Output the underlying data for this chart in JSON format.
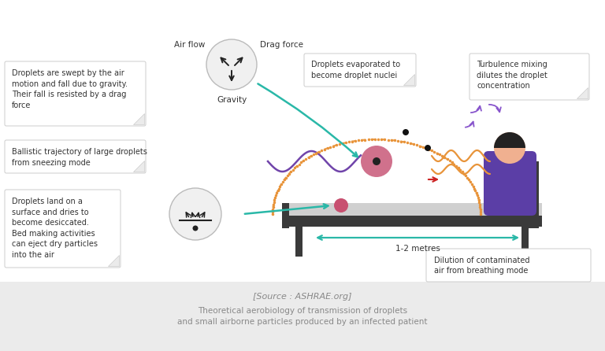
{
  "bg_color": "#ebebeb",
  "box_bg": "#ffffff",
  "box_border": "#cccccc",
  "title_source": "[Source : ASHRAE.org]",
  "title_main": "Theoretical aerobiology of transmission of droplets\nand small airborne particles produced by an infected patient",
  "label_airflow": "Air flow",
  "label_drag": "Drag force",
  "label_gravity": "Gravity",
  "label_box1": "Droplets are swept by the air\nmotion and fall due to gravity.\nTheir fall is resisted by a drag\nforce",
  "label_box2": "Ballistic trajectory of large droplets\nfrom sneezing mode",
  "label_box3": "Droplets land on a\nsurface and dries to\nbecome desiccated.\nBed making activities\ncan eject dry particles\ninto the air",
  "label_box4": "Droplets evaporated to\nbecome droplet nuclei",
  "label_box5": "Turbulence mixing\ndilutes the droplet\nconcentration",
  "label_distance": "1-2 metres",
  "label_dilution": "Dilution of contaminated\nair from breathing mode",
  "person_color": "#5b3ea6",
  "skin_color": "#f0b090",
  "hair_color": "#222222",
  "bed_dark": "#3a3a3a",
  "bed_light": "#d0d0d0",
  "droplet_pink": "#c85070",
  "arrow_teal": "#2ab8a8",
  "arrow_orange": "#e8943a",
  "arrow_purple": "#8855cc",
  "arrow_red": "#cc2222",
  "arrow_dark_purple": "#663399"
}
